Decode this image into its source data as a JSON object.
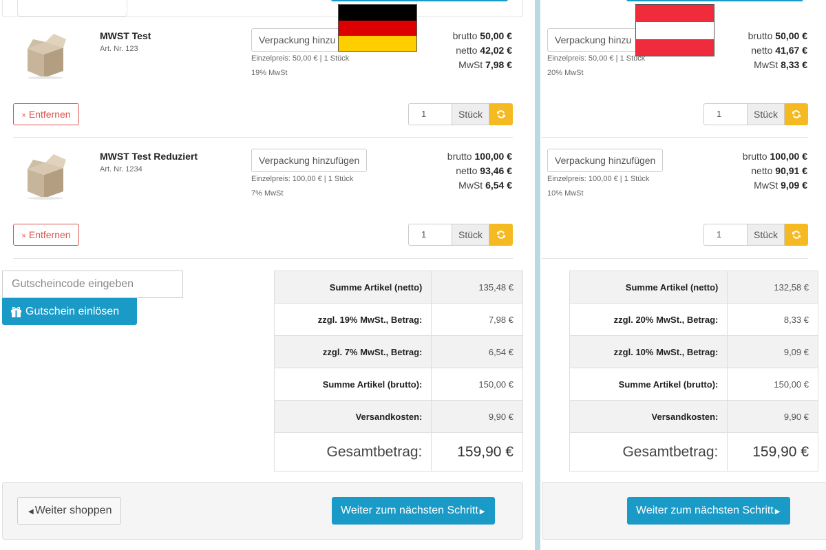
{
  "currency": "€",
  "colors": {
    "primary": "#1a9ac7",
    "danger": "#d9534f",
    "warning": "#f5b921",
    "divider": "#bcd9e2"
  },
  "common": {
    "pack_label": "Verpackung hinzufügen",
    "remove_label": "Entfernen",
    "unit_label": "Stück",
    "brutto_label": "brutto",
    "netto_label": "netto",
    "mwst_label": "MwSt",
    "coupon_placeholder": "Gutscheincode eingeben",
    "coupon_button": "Gutschein einlösen",
    "back_button": "Weiter shoppen",
    "next_button": "Weiter zum nächsten Schritt"
  },
  "de": {
    "flag": "germany-flag",
    "items": [
      {
        "name": "MWST Test",
        "art": "Art. Nr. 123",
        "unit_price": "Einzelpreis: 50,00 € | 1 Stück",
        "vat_rate": "19% MwSt",
        "brutto": "50,00 €",
        "netto": "42,02 €",
        "mwst": "7,98 €",
        "qty": "1",
        "pack_label": "Verpackung hinzu"
      },
      {
        "name": "MWST Test Reduziert",
        "art": "Art. Nr. 1234",
        "unit_price": "Einzelpreis: 100,00 € | 1 Stück",
        "vat_rate": "7% MwSt",
        "brutto": "100,00 €",
        "netto": "93,46 €",
        "mwst": "6,54 €",
        "qty": "1",
        "pack_label": "Verpackung hinzufügen"
      }
    ],
    "summary": [
      {
        "label": "Summe Artikel (netto)",
        "value": "135,48 €"
      },
      {
        "label": "zzgl. 19% MwSt., Betrag:",
        "value": "7,98 €"
      },
      {
        "label": "zzgl. 7% MwSt., Betrag:",
        "value": "6,54 €"
      },
      {
        "label": "Summe Artikel (brutto):",
        "value": "150,00 €"
      },
      {
        "label": "Versandkosten:",
        "value": "9,90 €"
      },
      {
        "label": "Gesamtbetrag:",
        "value": "159,90 €"
      }
    ]
  },
  "at": {
    "flag": "austria-flag",
    "items": [
      {
        "name": "",
        "art": "",
        "unit_price": "Einzelpreis: 50,00 € | 1 Stück",
        "vat_rate": "20% MwSt",
        "brutto": "50,00 €",
        "netto": "41,67 €",
        "mwst": "8,33 €",
        "qty": "1",
        "pack_label": "Verpackung hinzu"
      },
      {
        "name": "",
        "art": "",
        "unit_price": "Einzelpreis: 100,00 € | 1 Stück",
        "vat_rate": "10% MwSt",
        "brutto": "100,00 €",
        "netto": "90,91 €",
        "mwst": "9,09 €",
        "qty": "1",
        "pack_label": "Verpackung hinzufügen"
      }
    ],
    "summary": [
      {
        "label": "Summe Artikel (netto)",
        "value": "132,58 €"
      },
      {
        "label": "zzgl. 20% MwSt., Betrag:",
        "value": "8,33 €"
      },
      {
        "label": "zzgl. 10% MwSt., Betrag:",
        "value": "9,09 €"
      },
      {
        "label": "Summe Artikel (brutto):",
        "value": "150,00 €"
      },
      {
        "label": "Versandkosten:",
        "value": "9,90 €"
      },
      {
        "label": "Gesamtbetrag:",
        "value": "159,90 €"
      }
    ]
  }
}
